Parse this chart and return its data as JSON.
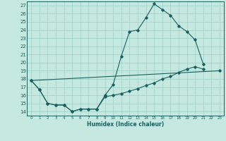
{
  "xlabel": "Humidex (Indice chaleur)",
  "xlim": [
    -0.5,
    23.5
  ],
  "ylim": [
    13.5,
    27.5
  ],
  "yticks": [
    14,
    15,
    16,
    17,
    18,
    19,
    20,
    21,
    22,
    23,
    24,
    25,
    26,
    27
  ],
  "xticks": [
    0,
    1,
    2,
    3,
    4,
    5,
    6,
    7,
    8,
    9,
    10,
    11,
    12,
    13,
    14,
    15,
    16,
    17,
    18,
    19,
    20,
    21,
    22,
    23
  ],
  "bg_color": "#c5e8e0",
  "line_color": "#1a6060",
  "grid_color": "#9dcfc8",
  "line1_y": [
    17.8,
    16.7,
    15.0,
    14.8,
    14.8,
    14.0,
    14.3,
    14.3,
    14.3,
    16.0,
    17.3,
    20.8,
    23.8,
    24.0,
    25.5,
    27.2,
    26.5,
    25.8,
    24.5,
    23.8,
    22.8,
    19.8,
    null,
    null
  ],
  "line2_y": [
    17.8,
    16.7,
    15.0,
    14.8,
    14.8,
    14.0,
    14.3,
    14.3,
    14.3,
    15.8,
    16.0,
    16.2,
    16.5,
    16.8,
    17.2,
    17.5,
    18.0,
    18.3,
    18.8,
    19.2,
    19.5,
    19.2,
    null,
    19.0
  ],
  "line3_x": [
    0,
    23
  ],
  "line3_y": [
    17.8,
    19.0
  ]
}
